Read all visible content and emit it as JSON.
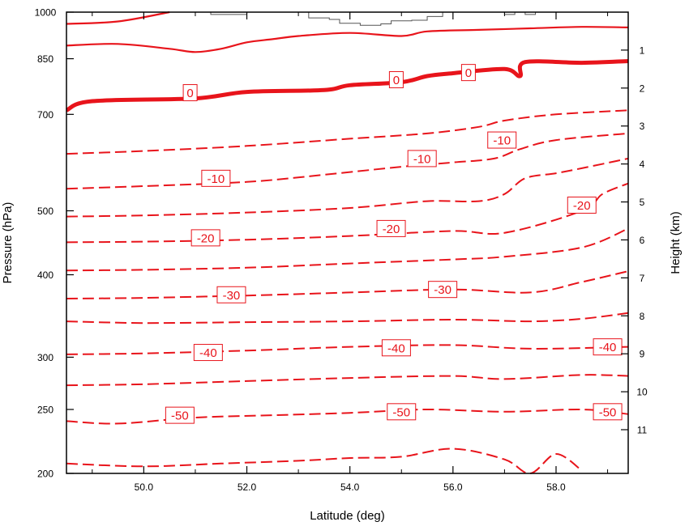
{
  "chart_data": {
    "type": "line",
    "title": "",
    "xlabel": "Latitude (deg)",
    "ylabel_left": "Pressure (hPa)",
    "ylabel_right": "Height (km)",
    "xlim": [
      48.5,
      59.4
    ],
    "ylim_pressure": [
      1000,
      200
    ],
    "y_scale": "log-pressure",
    "x_ticks": [
      "50.0",
      "52.0",
      "54.0",
      "56.0",
      "58.0"
    ],
    "x_tick_values": [
      50,
      52,
      54,
      56,
      58
    ],
    "pressure_ticks": [
      "200",
      "250",
      "300",
      "400",
      "500",
      "700",
      "850",
      "1000"
    ],
    "pressure_tick_values": [
      200,
      250,
      300,
      400,
      500,
      700,
      850,
      1000
    ],
    "height_ticks": [
      "1",
      "2",
      "3",
      "4",
      "5",
      "6",
      "7",
      "8",
      "9",
      "10",
      "11"
    ],
    "height_tick_values": [
      1,
      2,
      3,
      4,
      5,
      6,
      7,
      8,
      9,
      10,
      11
    ],
    "line_color": "#e8141b",
    "terrain_color": "#555555",
    "grid": false,
    "contours": [
      {
        "level": -55,
        "style": "dashed",
        "points": [
          [
            48.5,
            207
          ],
          [
            50.0,
            205
          ],
          [
            51.5,
            207
          ],
          [
            53.0,
            209
          ],
          [
            54.0,
            211
          ],
          [
            55.0,
            212
          ],
          [
            56.0,
            218
          ],
          [
            57.0,
            210
          ],
          [
            57.5,
            200
          ],
          [
            58.0,
            214
          ],
          [
            58.5,
            202
          ]
        ]
      },
      {
        "level": -50,
        "style": "dashed",
        "points": [
          [
            48.5,
            240
          ],
          [
            49.5,
            238
          ],
          [
            51.0,
            243
          ],
          [
            52.5,
            245
          ],
          [
            54.0,
            247
          ],
          [
            55.5,
            250
          ],
          [
            57.0,
            248
          ],
          [
            58.5,
            250
          ],
          [
            59.4,
            246
          ]
        ]
      },
      {
        "level": -45,
        "style": "dashed",
        "points": [
          [
            48.5,
            272
          ],
          [
            50.0,
            273
          ],
          [
            52.0,
            276
          ],
          [
            54.0,
            279
          ],
          [
            56.0,
            281
          ],
          [
            57.0,
            278
          ],
          [
            58.5,
            282
          ],
          [
            59.4,
            281
          ]
        ]
      },
      {
        "level": -40,
        "style": "dashed",
        "points": [
          [
            48.5,
            303
          ],
          [
            50.0,
            304
          ],
          [
            52.0,
            307
          ],
          [
            54.0,
            311
          ],
          [
            56.0,
            313
          ],
          [
            57.5,
            309
          ],
          [
            59.4,
            311
          ]
        ]
      },
      {
        "level": -35,
        "style": "dashed",
        "points": [
          [
            48.5,
            340
          ],
          [
            50.0,
            338
          ],
          [
            52.0,
            339
          ],
          [
            54.0,
            340
          ],
          [
            56.0,
            342
          ],
          [
            57.5,
            340
          ],
          [
            58.5,
            343
          ],
          [
            59.4,
            350
          ]
        ]
      },
      {
        "level": -30,
        "style": "dashed",
        "points": [
          [
            48.5,
            368
          ],
          [
            50.0,
            369
          ],
          [
            52.0,
            372
          ],
          [
            54.0,
            376
          ],
          [
            56.0,
            380
          ],
          [
            57.5,
            376
          ],
          [
            58.5,
            390
          ],
          [
            59.4,
            405
          ]
        ]
      },
      {
        "level": -25,
        "style": "dashed",
        "points": [
          [
            48.5,
            406
          ],
          [
            50.0,
            407
          ],
          [
            52.0,
            410
          ],
          [
            54.0,
            416
          ],
          [
            56.0,
            422
          ],
          [
            57.0,
            426
          ],
          [
            58.5,
            440
          ],
          [
            59.4,
            470
          ]
        ]
      },
      {
        "level": -20,
        "style": "dashed",
        "points": [
          [
            48.5,
            448
          ],
          [
            50.0,
            449
          ],
          [
            52.0,
            452
          ],
          [
            54.0,
            458
          ],
          [
            56.0,
            466
          ],
          [
            57.0,
            463
          ],
          [
            58.5,
            500
          ],
          [
            58.9,
            530
          ],
          [
            59.4,
            550
          ]
        ]
      },
      {
        "level": -15,
        "style": "dashed",
        "points": [
          [
            48.5,
            490
          ],
          [
            50.0,
            492
          ],
          [
            52.0,
            497
          ],
          [
            54.0,
            505
          ],
          [
            55.5,
            517
          ],
          [
            56.5,
            517
          ],
          [
            57.0,
            530
          ],
          [
            57.4,
            560
          ],
          [
            58.0,
            570
          ],
          [
            58.5,
            580
          ],
          [
            59.4,
            600
          ]
        ]
      },
      {
        "level": -10,
        "style": "dashed",
        "points": [
          [
            48.5,
            540
          ],
          [
            50.0,
            545
          ],
          [
            52.0,
            553
          ],
          [
            53.5,
            567
          ],
          [
            55.0,
            583
          ],
          [
            56.0,
            592
          ],
          [
            56.8,
            600
          ],
          [
            57.3,
            620
          ],
          [
            58.0,
            640
          ],
          [
            59.4,
            655
          ]
        ]
      },
      {
        "level": -5,
        "style": "dashed",
        "points": [
          [
            48.5,
            610
          ],
          [
            50.0,
            616
          ],
          [
            52.0,
            627
          ],
          [
            54.0,
            643
          ],
          [
            55.5,
            655
          ],
          [
            56.5,
            670
          ],
          [
            57.0,
            685
          ],
          [
            58.0,
            700
          ],
          [
            59.4,
            710
          ]
        ]
      },
      {
        "level": 0,
        "style": "bold",
        "points": [
          [
            48.5,
            710
          ],
          [
            49.0,
            733
          ],
          [
            51.0,
            740
          ],
          [
            52.0,
            757
          ],
          [
            53.5,
            762
          ],
          [
            54.0,
            775
          ],
          [
            55.0,
            783
          ],
          [
            55.5,
            800
          ],
          [
            56.0,
            808
          ],
          [
            57.0,
            820
          ],
          [
            57.3,
            800
          ],
          [
            57.4,
            840
          ],
          [
            58.5,
            838
          ],
          [
            59.4,
            843
          ]
        ]
      },
      {
        "level": 5,
        "style": "solid",
        "points": [
          [
            48.5,
            890
          ],
          [
            49.5,
            895
          ],
          [
            50.5,
            880
          ],
          [
            51.0,
            870
          ],
          [
            51.5,
            880
          ],
          [
            52.0,
            900
          ],
          [
            52.5,
            910
          ],
          [
            53.0,
            920
          ],
          [
            54.0,
            930
          ],
          [
            55.0,
            920
          ],
          [
            55.5,
            935
          ],
          [
            56.5,
            940
          ],
          [
            57.5,
            945
          ],
          [
            58.5,
            950
          ],
          [
            59.4,
            948
          ]
        ]
      },
      {
        "level": 10,
        "style": "solid",
        "points": [
          [
            48.5,
            960
          ],
          [
            49.5,
            968
          ],
          [
            50.5,
            1000
          ]
        ]
      }
    ],
    "contour_labels": [
      {
        "text": "-50",
        "x": 50.7,
        "p": 245
      },
      {
        "text": "-50",
        "x": 55.0,
        "p": 248
      },
      {
        "text": "-50",
        "x": 59.0,
        "p": 248
      },
      {
        "text": "-40",
        "x": 51.25,
        "p": 305
      },
      {
        "text": "-40",
        "x": 54.9,
        "p": 310
      },
      {
        "text": "-40",
        "x": 59.0,
        "p": 311
      },
      {
        "text": "-30",
        "x": 51.7,
        "p": 373
      },
      {
        "text": "-30",
        "x": 55.8,
        "p": 380
      },
      {
        "text": "-30",
        "x": 51.7,
        "p": 0
      },
      {
        "text": "-20",
        "x": 51.2,
        "p": 455
      },
      {
        "text": "-20",
        "x": 54.8,
        "p": 470
      },
      {
        "text": "-20",
        "x": 58.5,
        "p": 510
      },
      {
        "text": "-10",
        "x": 51.4,
        "p": 560
      },
      {
        "text": "-10",
        "x": 55.4,
        "p": 600
      },
      {
        "text": "-10",
        "x": 56.95,
        "p": 640
      },
      {
        "text": "0",
        "x": 50.9,
        "p": 755
      },
      {
        "text": "0",
        "x": 54.9,
        "p": 790
      },
      {
        "text": "0",
        "x": 56.3,
        "p": 810
      }
    ],
    "terrain": [
      [
        48.5,
        1000
      ],
      [
        51.2,
        1000
      ],
      [
        51.3,
        992
      ],
      [
        51.7,
        992
      ],
      [
        52.0,
        1000
      ],
      [
        53.0,
        1000
      ],
      [
        53.2,
        980
      ],
      [
        53.6,
        975
      ],
      [
        53.8,
        962
      ],
      [
        54.2,
        955
      ],
      [
        54.6,
        960
      ],
      [
        54.8,
        970
      ],
      [
        55.2,
        972
      ],
      [
        55.5,
        985
      ],
      [
        55.8,
        1000
      ],
      [
        56.9,
        1000
      ],
      [
        57.0,
        992
      ],
      [
        57.2,
        1000
      ],
      [
        57.4,
        992
      ],
      [
        57.6,
        1000
      ],
      [
        59.4,
        1000
      ]
    ]
  }
}
